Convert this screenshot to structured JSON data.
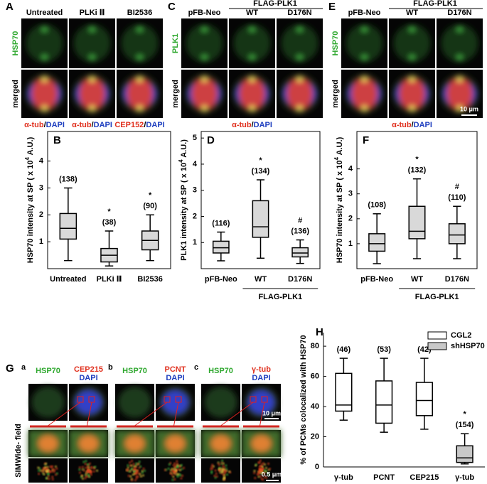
{
  "panels": [
    {
      "letter": "A",
      "columns": [
        "Untreated",
        "PLKi Ⅲ",
        "BI2536"
      ],
      "rows": [
        "HSP70",
        "merged"
      ],
      "stains": [
        [
          "α-tub",
          "/",
          "DAPI"
        ],
        [
          "α-tub",
          "/",
          "DAPI"
        ],
        [
          "CEP152",
          "/",
          "DAPI"
        ]
      ]
    },
    {
      "letter": "C",
      "group": "FLAG-PLK1",
      "columns": [
        "pFB-Neo",
        "WT",
        "D176N"
      ],
      "rows": [
        "PLK1",
        "merged"
      ],
      "stains": [
        [
          "α-tub",
          "/",
          "DAPI"
        ]
      ]
    },
    {
      "letter": "E",
      "group": "FLAG-PLK1",
      "columns": [
        "pFB-Neo",
        "WT",
        "D176N"
      ],
      "rows": [
        "HSP70",
        "merged"
      ],
      "stains": [
        [
          "α-tub",
          "/",
          "DAPI"
        ]
      ],
      "scale": "10 μm"
    }
  ],
  "sim": {
    "letter": "G",
    "subpanels": [
      {
        "letter": "a",
        "green": "HSP70",
        "red": "CEP215",
        "blue": "DAPI"
      },
      {
        "letter": "b",
        "green": "HSP70",
        "red": "PCNT",
        "blue": "DAPI"
      },
      {
        "letter": "c",
        "green": "HSP70",
        "red": "γ-tub",
        "blue": "DAPI"
      }
    ],
    "rows": [
      "Wide- field",
      "SIM"
    ],
    "scales": [
      "10 μm",
      "0.5 μm"
    ]
  },
  "chart_data": [
    {
      "type": "box",
      "panel": "B",
      "ylabel": {
        "text": "HSP70 intensity at SP ( x 10",
        "sup": "4",
        "tail": " A.U.)"
      },
      "categories": [
        "Untreated",
        "PLKi Ⅲ",
        "BI2536"
      ],
      "boxes": [
        {
          "whislo": 0.3,
          "q1": 1.1,
          "med": 1.5,
          "q3": 2.05,
          "whishi": 3.0
        },
        {
          "whislo": 0.1,
          "q1": 0.25,
          "med": 0.5,
          "q3": 0.75,
          "whishi": 1.4
        },
        {
          "whislo": 0.3,
          "q1": 0.7,
          "med": 1.05,
          "q3": 1.4,
          "whishi": 2.0
        }
      ],
      "n_labels": [
        "(138)",
        "(38)",
        "(90)"
      ],
      "markers": [
        null,
        "*",
        "*"
      ],
      "ylim": [
        0,
        5.1
      ],
      "yticks": [
        1,
        2,
        3,
        4
      ],
      "color": "#d9d9d9",
      "frame": true
    },
    {
      "type": "box",
      "panel": "D",
      "ylabel": {
        "text": "PLK1 intensity at SP ( x 10",
        "sup": "4",
        "tail": " A.U.)"
      },
      "categories": [
        "pFB-Neo",
        "WT",
        "D176N"
      ],
      "group": "FLAG-PLK1",
      "boxes": [
        {
          "whislo": 0.3,
          "q1": 0.6,
          "med": 0.8,
          "q3": 1.05,
          "whishi": 1.4
        },
        {
          "whislo": 0.4,
          "q1": 1.2,
          "med": 1.6,
          "q3": 2.6,
          "whishi": 3.4
        },
        {
          "whislo": 0.2,
          "q1": 0.45,
          "med": 0.6,
          "q3": 0.8,
          "whishi": 1.1
        }
      ],
      "n_labels": [
        "(116)",
        "(134)",
        "(136)"
      ],
      "markers": [
        null,
        "*",
        "#"
      ],
      "ylim": [
        0,
        5.25
      ],
      "yticks": [
        1,
        2,
        3,
        4,
        5
      ],
      "color": "#d9d9d9",
      "frame": true
    },
    {
      "type": "box",
      "panel": "F",
      "ylabel": {
        "text": "HSP70 intensity at SP ( x 10",
        "sup": "4",
        "tail": " A.U.)"
      },
      "categories": [
        "pFB-Neo",
        "WT",
        "D176N"
      ],
      "group": "FLAG-PLK1",
      "boxes": [
        {
          "whislo": 0.2,
          "q1": 0.7,
          "med": 1.0,
          "q3": 1.4,
          "whishi": 2.2
        },
        {
          "whislo": 0.4,
          "q1": 1.2,
          "med": 1.5,
          "q3": 2.5,
          "whishi": 3.6
        },
        {
          "whislo": 0.4,
          "q1": 1.0,
          "med": 1.35,
          "q3": 1.8,
          "whishi": 2.5
        }
      ],
      "n_labels": [
        "(108)",
        "(132)",
        "(110)"
      ],
      "markers": [
        null,
        "*",
        "#"
      ],
      "ylim": [
        0,
        5.5
      ],
      "yticks": [
        1,
        2,
        3,
        4
      ],
      "color": "#d9d9d9",
      "frame": true
    },
    {
      "type": "box",
      "panel": "H",
      "ylabel": {
        "text": "% of PCMs colocalized with HSP70"
      },
      "categories": [
        "γ-tub",
        "PCNT",
        "CEP215",
        "γ-tub"
      ],
      "series": [
        {
          "name": "CGL2",
          "color": "#ffffff",
          "boxes": [
            {
              "whislo": 31,
              "q1": 37,
              "med": 41,
              "q3": 62,
              "whishi": 72
            },
            {
              "whislo": 23,
              "q1": 29,
              "med": 41,
              "q3": 57,
              "whishi": 72
            },
            {
              "whislo": 25,
              "q1": 34,
              "med": 44,
              "q3": 56,
              "whishi": 72
            },
            null
          ]
        },
        {
          "name": "shHSP70",
          "color": "#c8c8c8",
          "boxes": [
            null,
            null,
            null,
            {
              "whislo": 2,
              "q1": 3,
              "med": 6,
              "q3": 14,
              "whishi": 22
            }
          ]
        }
      ],
      "n_labels": [
        "(46)",
        "(53)",
        "(42)",
        "(154)"
      ],
      "markers": [
        null,
        null,
        null,
        "*"
      ],
      "ylim": [
        0,
        89
      ],
      "yticks": [
        0,
        20,
        40,
        60,
        80
      ],
      "frame": false,
      "legend": "upper right"
    }
  ]
}
